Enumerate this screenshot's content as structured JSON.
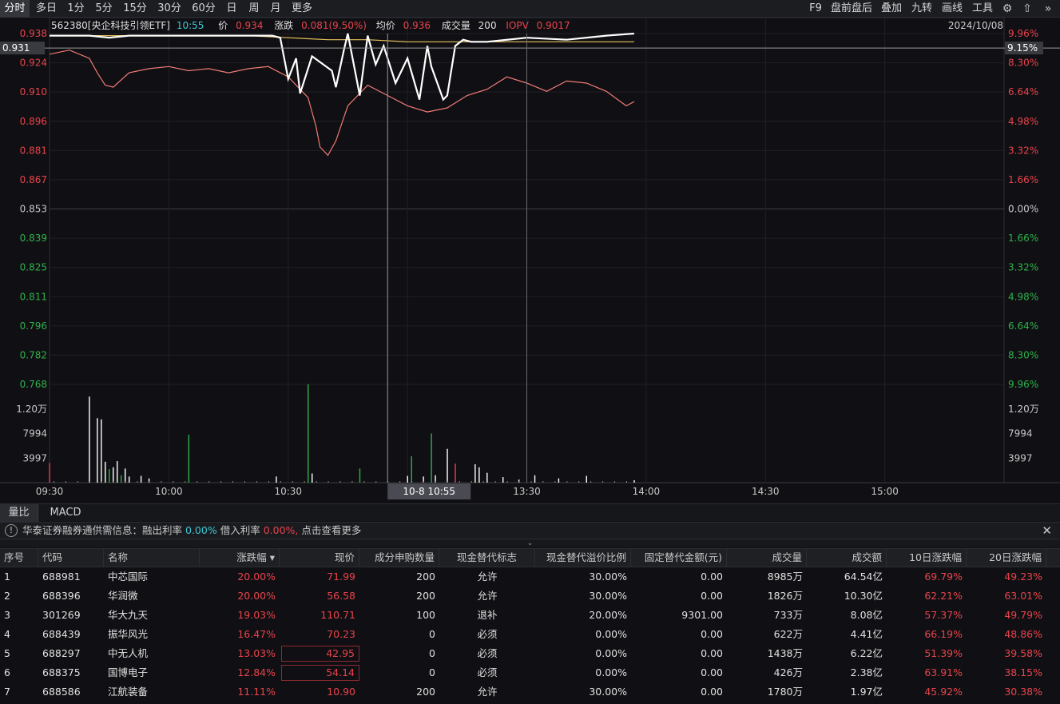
{
  "toolbar": {
    "left_tabs": [
      "分时",
      "多日",
      "1分",
      "5分",
      "15分",
      "30分",
      "60分",
      "日",
      "周",
      "月",
      "更多"
    ],
    "active_tab": "分时",
    "right_tabs": [
      "F9",
      "盘前盘后",
      "叠加",
      "九转",
      "画线",
      "工具"
    ],
    "icons": [
      "gear-icon",
      "arrow-up-icon",
      "double-chevron-right-icon"
    ]
  },
  "header": {
    "code_name": "562380[央企科技引领ETF]",
    "time": "10:55",
    "price_label": "价",
    "price": "0.934",
    "change_label": "涨跌",
    "change": "0.081(9.50%)",
    "avg_label": "均价",
    "avg": "0.936",
    "vol_label": "成交量",
    "vol": "200",
    "iopv_label": "IOPV",
    "iopv": "0.9017",
    "date": "2024/10/08"
  },
  "cursor": {
    "price_tag": "0.931",
    "pct_tag": "9.15%",
    "time_tag": "10-8 10:55"
  },
  "colors": {
    "up": "#e8434b",
    "down": "#2fb14a",
    "price_line": "#ffffff",
    "avg_line": "#e6c15a",
    "iopv_line": "#f07a74",
    "cyan": "#3ec7d4"
  },
  "chart_data": {
    "type": "line",
    "prev_close": 0.853,
    "ylim": [
      0.768,
      0.938
    ],
    "y_ticks": [
      "0.938",
      "0.924",
      "0.910",
      "0.896",
      "0.881",
      "0.867",
      "0.853",
      "0.839",
      "0.825",
      "0.811",
      "0.796",
      "0.782",
      "0.768"
    ],
    "pct_ticks": [
      "9.96%",
      "8.30%",
      "6.64%",
      "4.98%",
      "3.32%",
      "1.66%",
      "0.00%",
      "1.66%",
      "3.32%",
      "4.98%",
      "6.64%",
      "8.30%",
      "9.96%"
    ],
    "x_ticks": [
      "09:30",
      "10:00",
      "10:30",
      "13:00",
      "13:30",
      "14:00",
      "14:30",
      "15:00"
    ],
    "vol_ticks": [
      "1.20万",
      "7994",
      "3997"
    ],
    "vol_max": 15991,
    "series": [
      {
        "name": "价",
        "x": [
          0,
          10,
          15,
          20,
          25,
          30,
          40,
          48,
          50,
          52,
          56,
          58,
          60,
          62,
          63,
          66,
          71,
          72,
          74,
          75,
          78,
          80,
          82,
          84,
          87,
          90,
          93,
          95,
          96,
          99,
          100,
          102,
          104,
          106,
          110,
          120,
          130,
          140,
          147
        ],
        "y": [
          0.937,
          0.937,
          0.936,
          0.937,
          0.937,
          0.937,
          0.937,
          0.937,
          0.937,
          0.937,
          0.937,
          0.936,
          0.916,
          0.926,
          0.909,
          0.927,
          0.92,
          0.912,
          0.93,
          0.938,
          0.908,
          0.937,
          0.923,
          0.932,
          0.914,
          0.926,
          0.906,
          0.932,
          0.922,
          0.906,
          0.908,
          0.932,
          0.935,
          0.934,
          0.934,
          0.936,
          0.935,
          0.937,
          0.938
        ]
      },
      {
        "name": "均价",
        "x": [
          0,
          20,
          40,
          50,
          60,
          70,
          80,
          90,
          100,
          110,
          120,
          125,
          130,
          140,
          147
        ],
        "y": [
          0.937,
          0.937,
          0.937,
          0.937,
          0.936,
          0.935,
          0.935,
          0.934,
          0.934,
          0.934,
          0.934,
          0.934,
          0.934,
          0.934,
          0.934
        ]
      },
      {
        "name": "IOPV",
        "x": [
          0,
          5,
          10,
          12,
          14,
          16,
          20,
          25,
          30,
          35,
          40,
          45,
          50,
          55,
          60,
          65,
          67,
          68,
          70,
          72,
          75,
          80,
          85,
          89,
          90,
          95,
          100,
          105,
          110,
          115,
          120,
          125,
          130,
          135,
          140,
          145,
          147
        ],
        "y": [
          0.928,
          0.93,
          0.926,
          0.919,
          0.913,
          0.912,
          0.919,
          0.921,
          0.922,
          0.92,
          0.921,
          0.919,
          0.921,
          0.922,
          0.917,
          0.907,
          0.893,
          0.883,
          0.879,
          0.886,
          0.903,
          0.913,
          0.908,
          0.904,
          0.903,
          0.9,
          0.902,
          0.908,
          0.911,
          0.917,
          0.914,
          0.91,
          0.915,
          0.914,
          0.91,
          0.903,
          0.905
        ]
      }
    ],
    "volume": {
      "x": [
        0,
        10,
        12,
        13,
        14,
        15,
        16,
        17,
        18,
        19,
        20,
        23,
        25,
        35,
        57,
        65,
        66,
        78,
        90,
        91,
        94,
        96,
        97,
        100,
        102,
        107,
        108,
        110,
        114,
        118,
        122,
        128,
        135,
        147
      ],
      "values": [
        3200,
        14000,
        10500,
        10300,
        3400,
        2200,
        2500,
        3500,
        1200,
        2300,
        1000,
        1100,
        700,
        7800,
        1000,
        16000,
        1500,
        2300,
        1100,
        4300,
        1000,
        8000,
        1200,
        5500,
        3100,
        3000,
        2500,
        1600,
        900,
        500,
        1200,
        700,
        1100,
        400
      ],
      "colors": [
        "up",
        "flat",
        "flat",
        "flat",
        "flat",
        "down",
        "flat",
        "flat",
        "down",
        "flat",
        "flat",
        "flat",
        "flat",
        "down",
        "flat",
        "down",
        "flat",
        "down",
        "flat",
        "down",
        "flat",
        "down",
        "flat",
        "flat",
        "up",
        "flat",
        "flat",
        "flat",
        "flat",
        "flat",
        "flat",
        "flat",
        "flat",
        "flat"
      ]
    }
  },
  "bottom_tabs": [
    "量比",
    "MACD"
  ],
  "margin_info": {
    "prefix": "华泰证券融券通供需信息：融出利率",
    "rate_out": "0.00%",
    "borrow_label": "借入利率",
    "rate_in": "0.00%,",
    "more": "点击查看更多"
  },
  "table": {
    "headers": [
      "序号",
      "代码",
      "名称",
      "涨跌幅 ▾",
      "现价",
      "成分申购数量",
      "现金替代标志",
      "现金替代溢价比例",
      "固定替代金额(元)",
      "成交量",
      "成交额",
      "10日涨跌幅",
      "20日涨跌幅"
    ],
    "rows": [
      [
        "1",
        "688981",
        "中芯国际",
        "20.00%",
        "71.99",
        "200",
        "允许",
        "30.00%",
        "0.00",
        "8985万",
        "64.54亿",
        "69.79%",
        "49.23%"
      ],
      [
        "2",
        "688396",
        "华润微",
        "20.00%",
        "56.58",
        "200",
        "允许",
        "30.00%",
        "0.00",
        "1826万",
        "10.30亿",
        "62.21%",
        "63.01%"
      ],
      [
        "3",
        "301269",
        "华大九天",
        "19.03%",
        "110.71",
        "100",
        "退补",
        "20.00%",
        "9301.00",
        "733万",
        "8.08亿",
        "57.37%",
        "49.79%"
      ],
      [
        "4",
        "688439",
        "振华风光",
        "16.47%",
        "70.23",
        "0",
        "必须",
        "0.00%",
        "0.00",
        "622万",
        "4.41亿",
        "66.19%",
        "48.86%"
      ],
      [
        "5",
        "688297",
        "中无人机",
        "13.03%",
        "42.95",
        "0",
        "必须",
        "0.00%",
        "0.00",
        "1438万",
        "6.22亿",
        "51.39%",
        "39.58%"
      ],
      [
        "6",
        "688375",
        "国博电子",
        "12.84%",
        "54.14",
        "0",
        "必须",
        "0.00%",
        "0.00",
        "426万",
        "2.38亿",
        "63.91%",
        "38.15%"
      ],
      [
        "7",
        "688586",
        "江航装备",
        "11.11%",
        "10.90",
        "200",
        "允许",
        "30.00%",
        "0.00",
        "1780万",
        "1.97亿",
        "45.92%",
        "30.38%"
      ]
    ]
  }
}
